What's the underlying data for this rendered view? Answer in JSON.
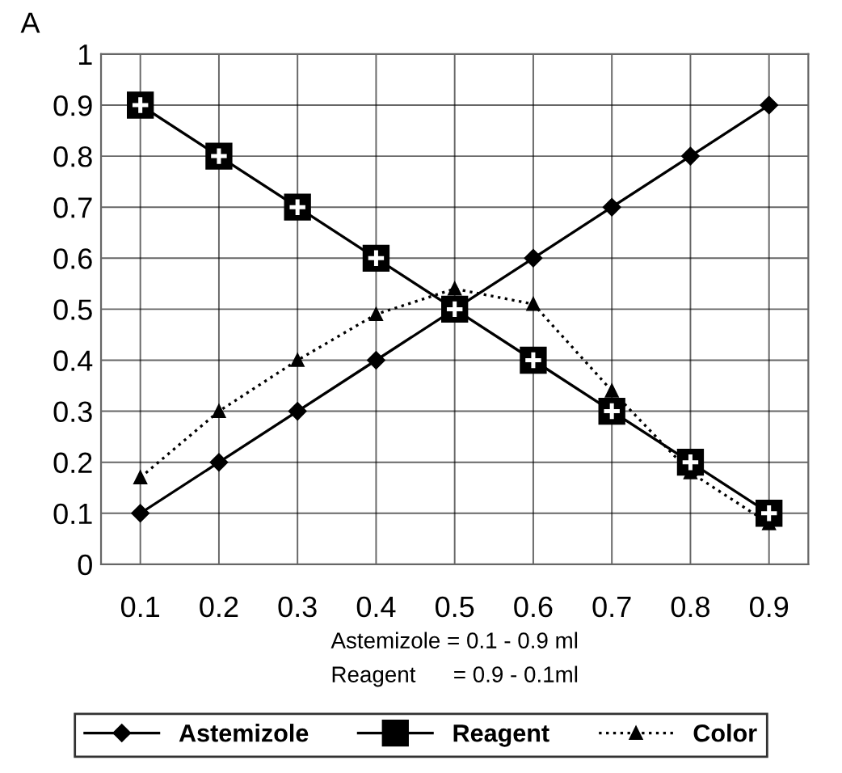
{
  "chart_data": {
    "type": "line",
    "ylabel": "A",
    "xlabel": "Astemizole = 0.1 - 0.9 ml\nReagent      = 0.9 - 0.1ml",
    "categories": [
      "0.1",
      "0.2",
      "0.3",
      "0.4",
      "0.5",
      "0.6",
      "0.7",
      "0.8",
      "0.9"
    ],
    "series": [
      {
        "name": "Astemizole",
        "color": "#000000",
        "marker": "diamond",
        "line_style": "solid",
        "values": [
          0.1,
          0.2,
          0.3,
          0.4,
          0.5,
          0.6,
          0.7,
          0.8,
          0.9
        ]
      },
      {
        "name": "Reagent",
        "color": "#000000",
        "marker": "square",
        "line_style": "solid",
        "values": [
          0.9,
          0.8,
          0.7,
          0.6,
          0.5,
          0.4,
          0.3,
          0.2,
          0.1
        ]
      },
      {
        "name": "Color",
        "color": "#000000",
        "marker": "triangle",
        "line_style": "dotted",
        "values": [
          0.17,
          0.3,
          0.4,
          0.49,
          0.54,
          0.51,
          0.34,
          0.18,
          0.08
        ]
      }
    ],
    "ylim": [
      0,
      1
    ],
    "yticks": [
      0,
      0.1,
      0.2,
      0.3,
      0.4,
      0.5,
      0.6,
      0.7,
      0.8,
      0.9,
      1
    ],
    "grid": true,
    "legend": "bottom"
  }
}
